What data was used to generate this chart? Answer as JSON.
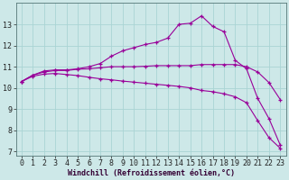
{
  "xlabel": "Windchill (Refroidissement éolien,°C)",
  "bg_color": "#cde8e8",
  "grid_color": "#aad4d4",
  "line_color": "#990099",
  "spine_color": "#557777",
  "xlim": [
    -0.5,
    23.5
  ],
  "ylim": [
    6.8,
    14.0
  ],
  "yticks": [
    7,
    8,
    9,
    10,
    11,
    12,
    13
  ],
  "xticks": [
    0,
    1,
    2,
    3,
    4,
    5,
    6,
    7,
    8,
    9,
    10,
    11,
    12,
    13,
    14,
    15,
    16,
    17,
    18,
    19,
    20,
    21,
    22,
    23
  ],
  "line1_x": [
    0,
    1,
    2,
    3,
    4,
    5,
    6,
    7,
    8,
    9,
    10,
    11,
    12,
    13,
    14,
    15,
    16,
    17,
    18,
    19,
    20,
    21,
    22,
    23
  ],
  "line1_y": [
    10.3,
    10.6,
    10.8,
    10.85,
    10.85,
    10.9,
    11.0,
    11.15,
    11.5,
    11.75,
    11.9,
    12.05,
    12.15,
    12.35,
    13.0,
    13.05,
    13.4,
    12.9,
    12.65,
    11.3,
    10.9,
    9.5,
    8.55,
    7.3
  ],
  "line2_x": [
    0,
    1,
    2,
    3,
    4,
    5,
    6,
    7,
    8,
    9,
    10,
    11,
    12,
    13,
    14,
    15,
    16,
    17,
    18,
    19,
    20,
    21,
    22,
    23
  ],
  "line2_y": [
    10.3,
    10.6,
    10.75,
    10.82,
    10.82,
    10.88,
    10.9,
    10.95,
    11.0,
    11.0,
    11.0,
    11.02,
    11.05,
    11.05,
    11.05,
    11.05,
    11.1,
    11.1,
    11.1,
    11.1,
    11.0,
    10.75,
    10.25,
    9.45
  ],
  "line3_x": [
    0,
    1,
    2,
    3,
    4,
    5,
    6,
    7,
    8,
    9,
    10,
    11,
    12,
    13,
    14,
    15,
    16,
    17,
    18,
    19,
    20,
    21,
    22,
    23
  ],
  "line3_y": [
    10.3,
    10.55,
    10.65,
    10.68,
    10.63,
    10.58,
    10.5,
    10.43,
    10.38,
    10.32,
    10.27,
    10.22,
    10.17,
    10.12,
    10.07,
    10.0,
    9.88,
    9.82,
    9.72,
    9.58,
    9.3,
    8.45,
    7.65,
    7.15
  ],
  "tick_fontsize": 6,
  "xlabel_fontsize": 6,
  "marker": "+"
}
